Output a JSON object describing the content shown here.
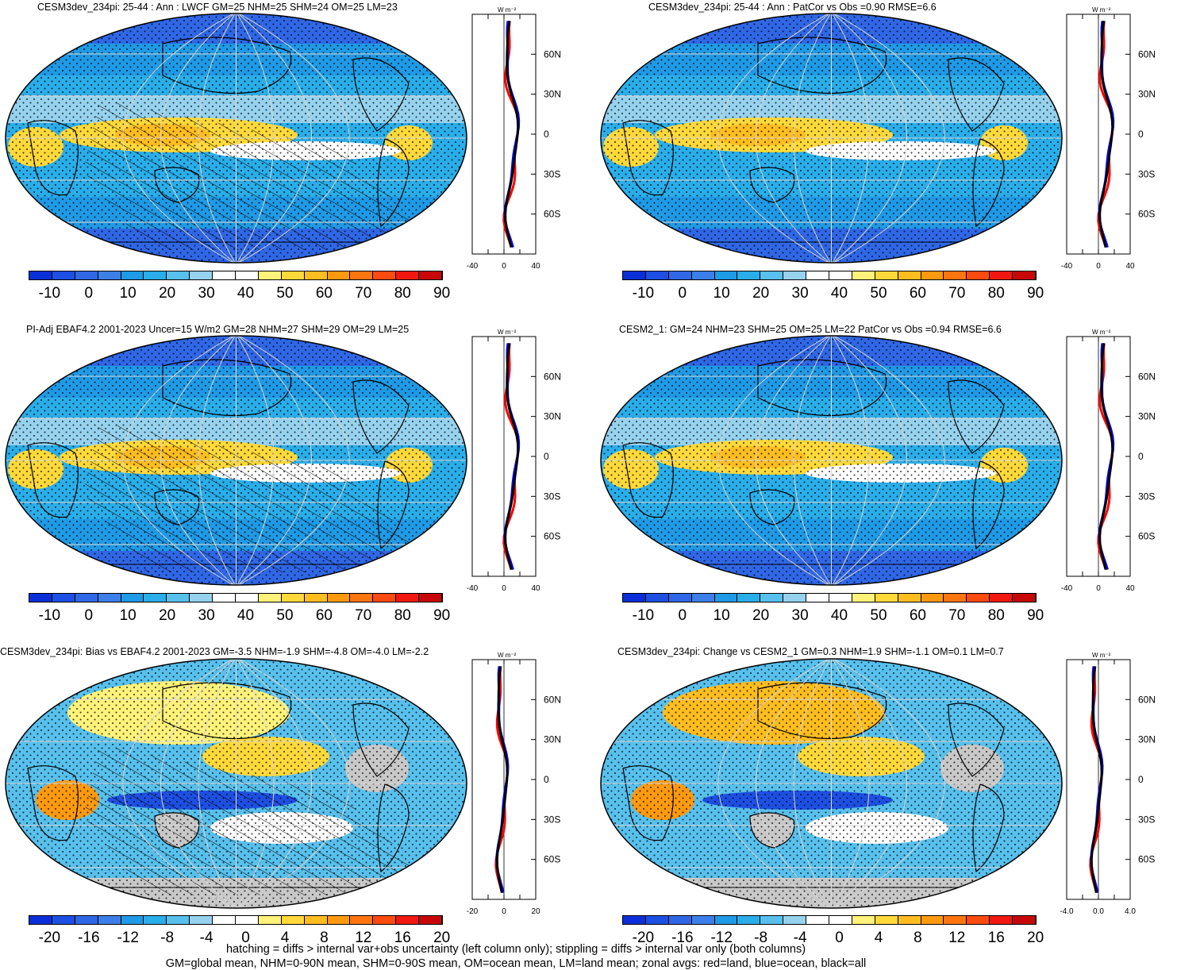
{
  "panels": [
    {
      "title": "CESM3dev_234pi: 25-44 : Ann : LWCF GM=25 NHM=25 SHM=24 OM=25 LM=23",
      "colorbar_labels": [
        "-10",
        "0",
        "10",
        "20",
        "30",
        "40",
        "50",
        "60",
        "70",
        "80",
        "90"
      ],
      "zonal": {
        "unit": "W m⁻²",
        "xticks": [
          "-40",
          "0",
          "40"
        ],
        "yticks": [
          "60N",
          "30N",
          "0",
          "30S",
          "60S"
        ]
      }
    },
    {
      "title": "CESM3dev_234pi: 25-44 : Ann : PatCor vs Obs =0.90 RMSE=6.6",
      "colorbar_labels": [
        "-10",
        "0",
        "10",
        "20",
        "30",
        "40",
        "50",
        "60",
        "70",
        "80",
        "90"
      ],
      "zonal": {
        "unit": "W m⁻²",
        "xticks": [
          "-40",
          "0",
          "40"
        ],
        "yticks": [
          "60N",
          "30N",
          "0",
          "30S",
          "60S"
        ]
      }
    },
    {
      "title": "PI-Adj EBAF4.2 2001-2023 Uncer=15 W/m2 GM=28 NHM=27 SHM=29 OM=29 LM=25",
      "colorbar_labels": [
        "-10",
        "0",
        "10",
        "20",
        "30",
        "40",
        "50",
        "60",
        "70",
        "80",
        "90"
      ],
      "zonal": {
        "unit": "W m⁻²",
        "xticks": [
          "-40",
          "0",
          "40"
        ],
        "yticks": [
          "60N",
          "30N",
          "0",
          "30S",
          "60S"
        ]
      }
    },
    {
      "title": "CESM2_1: GM=24 NHM=23 SHM=25 OM=25 LM=22 PatCor vs Obs =0.94 RMSE=6.6",
      "colorbar_labels": [
        "-10",
        "0",
        "10",
        "20",
        "30",
        "40",
        "50",
        "60",
        "70",
        "80",
        "90"
      ],
      "zonal": {
        "unit": "W m⁻²",
        "xticks": [
          "-40",
          "0",
          "40"
        ],
        "yticks": [
          "60N",
          "30N",
          "0",
          "30S",
          "60S"
        ]
      }
    },
    {
      "title": "CESM3dev_234pi: Bias vs EBAF4.2 2001-2023 GM=-3.5 NHM=-1.9 SHM=-4.8 OM=-4.0 LM=-2.2",
      "colorbar_labels": [
        "-20",
        "-16",
        "-12",
        "-8",
        "-4",
        "0",
        "4",
        "8",
        "12",
        "16",
        "20"
      ],
      "zonal": {
        "unit": "W m⁻²",
        "xticks": [
          "-20",
          "0",
          "20"
        ],
        "yticks": [
          "60N",
          "30N",
          "0",
          "30S",
          "60S"
        ]
      }
    },
    {
      "title": "CESM3dev_234pi: Change vs CESM2_1 GM=0.3 NHM=1.9 SHM=-1.1 OM=0.1 LM=0.7",
      "colorbar_labels": [
        "-20",
        "-16",
        "-12",
        "-8",
        "-4",
        "0",
        "4",
        "8",
        "12",
        "16",
        "20"
      ],
      "zonal": {
        "unit": "W m⁻²",
        "xticks": [
          "-4.0",
          "0.0",
          "4.0"
        ],
        "yticks": [
          "60N",
          "30N",
          "0",
          "30S",
          "60S"
        ]
      }
    }
  ],
  "colors": {
    "palette": [
      "#0a2fd8",
      "#1d4fe3",
      "#2f67e6",
      "#3d7fe8",
      "#1f9ae6",
      "#2aaeea",
      "#58c0ec",
      "#96d2ee",
      "#ffffff",
      "#ffffff",
      "#fff27a",
      "#ffd93a",
      "#ffbd1f",
      "#ff9a10",
      "#ff7510",
      "#ff4a10",
      "#f01810",
      "#c80808"
    ],
    "land_gray": "#c8c8c8",
    "zonal_land": "#ff0000",
    "zonal_ocean": "#0000ff",
    "zonal_all": "#000000"
  },
  "footer": {
    "line1": "hatching = diffs > internal var+obs uncertainty (left column only); stippling = diffs > internal var only (both columns)",
    "line2": "GM=global mean, NHM=0-90N mean, SHM=0-90S mean, OM=ocean mean, LM=land mean; zonal avgs: red=land, blue=ocean, black=all"
  }
}
